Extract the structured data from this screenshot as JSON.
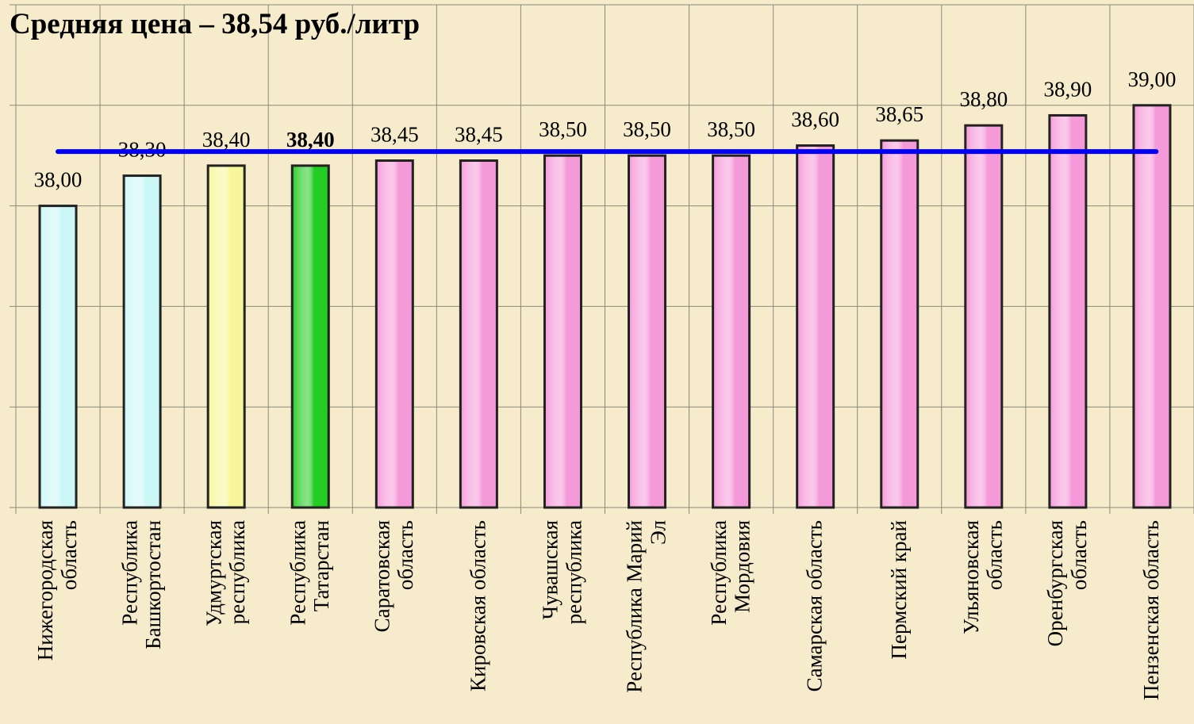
{
  "chart_data": {
    "type": "bar",
    "title": "Средняя цена – 38,54 руб./литр",
    "categories": [
      "Нижегородская\nобласть",
      "Республика\nБашкортостан",
      "Удмуртская\nреспублика",
      "Республика\nТатарстан",
      "Саратовская\nобласть",
      "Кировская область",
      "Чувашская\nреспублика",
      "Республика Марий\nЭл",
      "Республика\nМордовия",
      "Самарская область",
      "Пермский край",
      "Ульяновская\nобласть",
      "Оренбургская\nобласть",
      "Пензенская область"
    ],
    "values": [
      38.0,
      38.3,
      38.4,
      38.4,
      38.45,
      38.45,
      38.5,
      38.5,
      38.5,
      38.6,
      38.65,
      38.8,
      38.9,
      39.0
    ],
    "value_labels": [
      "38,00",
      "38,30",
      "38,40",
      "38,40",
      "38,45",
      "38,45",
      "38,50",
      "38,50",
      "38,50",
      "38,60",
      "38,65",
      "38,80",
      "38,90",
      "39,00"
    ],
    "colors": [
      "#ccf7f7",
      "#ccf7f7",
      "#f7f79a",
      "#22cc22",
      "#f59ad9",
      "#f59ad9",
      "#f59ad9",
      "#f59ad9",
      "#f59ad9",
      "#f59ad9",
      "#f59ad9",
      "#f59ad9",
      "#f59ad9",
      "#f59ad9"
    ],
    "bold_label_index": 3,
    "average": 38.54,
    "average_color": "#0000ee",
    "ylim": [
      35,
      40
    ],
    "yticks": [
      35,
      36,
      37,
      38,
      39,
      40
    ],
    "grid": true
  }
}
